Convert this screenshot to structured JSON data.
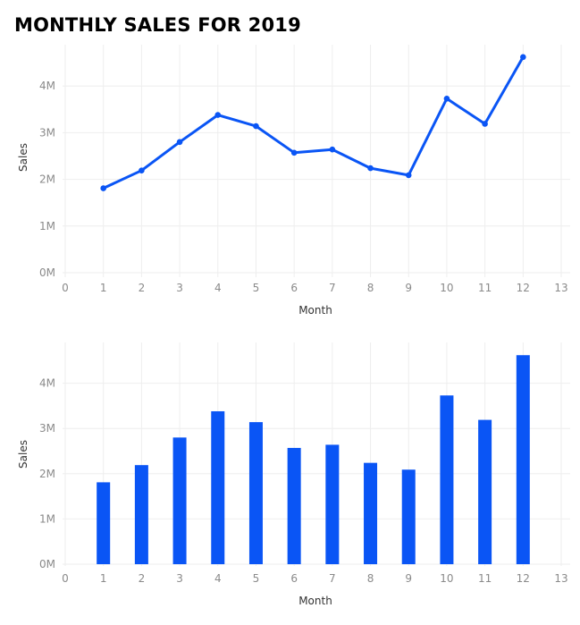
{
  "title": "MONTHLY SALES FOR 2019",
  "chart_data": [
    {
      "type": "line",
      "xlabel": "Month",
      "ylabel": "Sales",
      "x": [
        1,
        2,
        3,
        4,
        5,
        6,
        7,
        8,
        9,
        10,
        11,
        12
      ],
      "values": [
        1.81,
        2.19,
        2.8,
        3.38,
        3.14,
        2.57,
        2.64,
        2.24,
        2.09,
        3.73,
        3.19,
        4.62
      ],
      "xticks": [
        0,
        1,
        2,
        3,
        4,
        5,
        6,
        7,
        8,
        9,
        10,
        11,
        12,
        13
      ],
      "yticks": [
        0,
        1,
        2,
        3,
        4
      ],
      "ytick_labels": [
        "0M",
        "1M",
        "2M",
        "3M",
        "4M"
      ],
      "xlim": [
        0,
        13
      ],
      "ylim": [
        -0.15,
        4.82
      ],
      "grid": true,
      "color": "#0a55f5"
    },
    {
      "type": "bar",
      "xlabel": "Month",
      "ylabel": "Sales",
      "x": [
        1,
        2,
        3,
        4,
        5,
        6,
        7,
        8,
        9,
        10,
        11,
        12
      ],
      "values": [
        1.81,
        2.19,
        2.8,
        3.38,
        3.14,
        2.57,
        2.64,
        2.24,
        2.09,
        3.73,
        3.19,
        4.62
      ],
      "xticks": [
        0,
        1,
        2,
        3,
        4,
        5,
        6,
        7,
        8,
        9,
        10,
        11,
        12,
        13
      ],
      "yticks": [
        0,
        1,
        2,
        3,
        4
      ],
      "ytick_labels": [
        "0M",
        "1M",
        "2M",
        "3M",
        "4M"
      ],
      "xlim": [
        0,
        13
      ],
      "ylim": [
        -0.15,
        4.82
      ],
      "grid": true,
      "color": "#0a55f5"
    }
  ]
}
